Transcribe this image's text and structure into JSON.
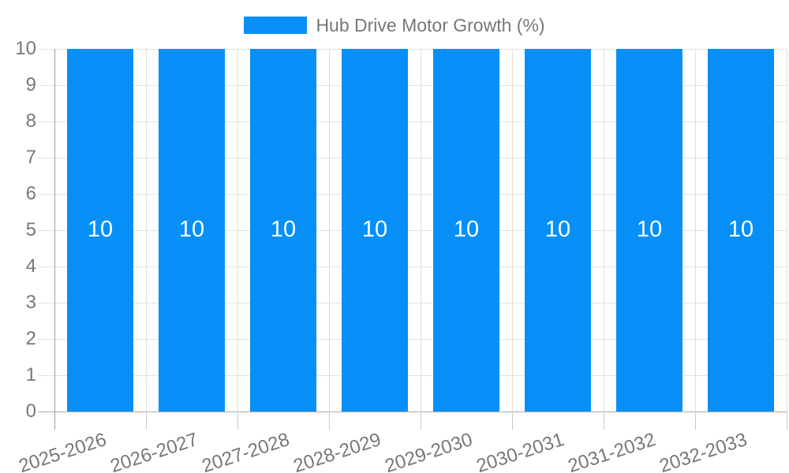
{
  "chart_data": {
    "type": "bar",
    "title": "Hub Drive Motor Growth (%)",
    "categories": [
      "2025-2026",
      "2026-2027",
      "2027-2028",
      "2028-2029",
      "2029-2030",
      "2030-2031",
      "2031-2032",
      "2032-2033"
    ],
    "values": [
      10,
      10,
      10,
      10,
      10,
      10,
      10,
      10
    ],
    "xlabel": "",
    "ylabel": "",
    "ylim": [
      0,
      10
    ],
    "y_ticks": [
      0,
      1,
      2,
      3,
      4,
      5,
      6,
      7,
      8,
      9,
      10
    ],
    "grid": true,
    "legend_position": "top",
    "bar_labels_visible": true,
    "colors": {
      "bar": "#0690f7",
      "bar_label": "#ffffff",
      "axis_text": "#757779",
      "gridline": "#e3e3e3",
      "axis_line": "#9e9e9e",
      "background": "#ffffff"
    }
  }
}
